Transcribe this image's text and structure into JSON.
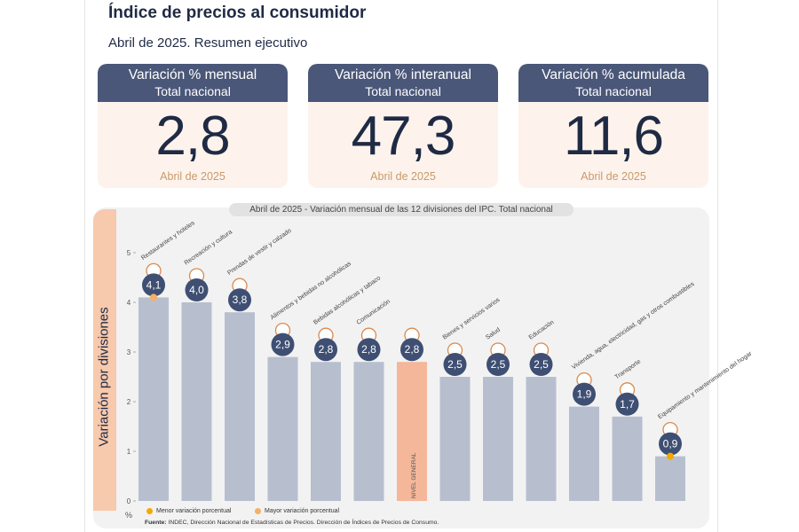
{
  "header": {
    "title": "Índice de precios al consumidor",
    "subtitle": "Abril de 2025. Resumen ejecutivo"
  },
  "cards": [
    {
      "heading": "Variación % mensual",
      "scope": "Total nacional",
      "value": "2,8",
      "period": "Abril de 2025"
    },
    {
      "heading": "Variación % interanual",
      "scope": "Total nacional",
      "value": "47,3",
      "period": "Abril de 2025"
    },
    {
      "heading": "Variación % acumulada",
      "scope": "Total nacional",
      "value": "11,6",
      "period": "Abril de 2025"
    }
  ],
  "chart_data": {
    "type": "bar",
    "title": "Abril de 2025 - Variación mensual de las 12 divisiones del IPC. Total nacional",
    "ylabel": "Variación por divisiones",
    "yunit": "%",
    "ylim": [
      0,
      5
    ],
    "yticks": [
      0,
      1,
      2,
      3,
      4,
      5
    ],
    "categories": [
      "Restaurantes y hoteles",
      "Recreación y cultura",
      "Prendas de vestir y calzado",
      "Alimentos y bebidas no alcohólicas",
      "Bebidas alcohólicas y tabaco",
      "Comunicación",
      "NIVEL GENERAL",
      "Bienes y servicios varios",
      "Salud",
      "Educación",
      "Vivienda, agua, electricidad, gas y otros combustibles",
      "Transporte",
      "Equipamiento y mantenimiento del hogar"
    ],
    "values": [
      4.1,
      4.0,
      3.8,
      2.9,
      2.8,
      2.8,
      2.8,
      2.5,
      2.5,
      2.5,
      1.9,
      1.7,
      0.9
    ],
    "value_labels": [
      "4,1",
      "4,0",
      "3,8",
      "2,9",
      "2,8",
      "2,8",
      "2,8",
      "2,5",
      "2,5",
      "2,5",
      "1,9",
      "1,7",
      "0,9"
    ],
    "highlight_category": "NIVEL GENERAL",
    "colors": {
      "bar": "#b7bfcf",
      "highlight_bar": "#f4b79a",
      "badge": "#3f4f73",
      "marker_min": "#f5a800",
      "marker_max": "#f5b066"
    },
    "markers": [
      {
        "category": "Restaurantes y hoteles",
        "kind": "max"
      },
      {
        "category": "Equipamiento y mantenimiento del hogar",
        "kind": "min"
      }
    ],
    "legend": [
      {
        "label": "Menor variación porcentual",
        "kind": "min"
      },
      {
        "label": "Mayor variación porcentual",
        "kind": "max"
      }
    ],
    "icons": [
      "cutlery-icon",
      "umbrella-icon",
      "shirt-icon",
      "food-icon",
      "bottle-icon",
      "phone-icon",
      "basket-icon",
      "scissors-icon",
      "medical-cross-icon",
      "book-icon",
      "lightbulb-icon",
      "bus-card-icon",
      "home-appliance-icon"
    ]
  },
  "source": {
    "label": "Fuente:",
    "text": "INDEC, Dirección Nacional de Estadísticas de Precios. Dirección de Índices de Precios de Consumo."
  }
}
